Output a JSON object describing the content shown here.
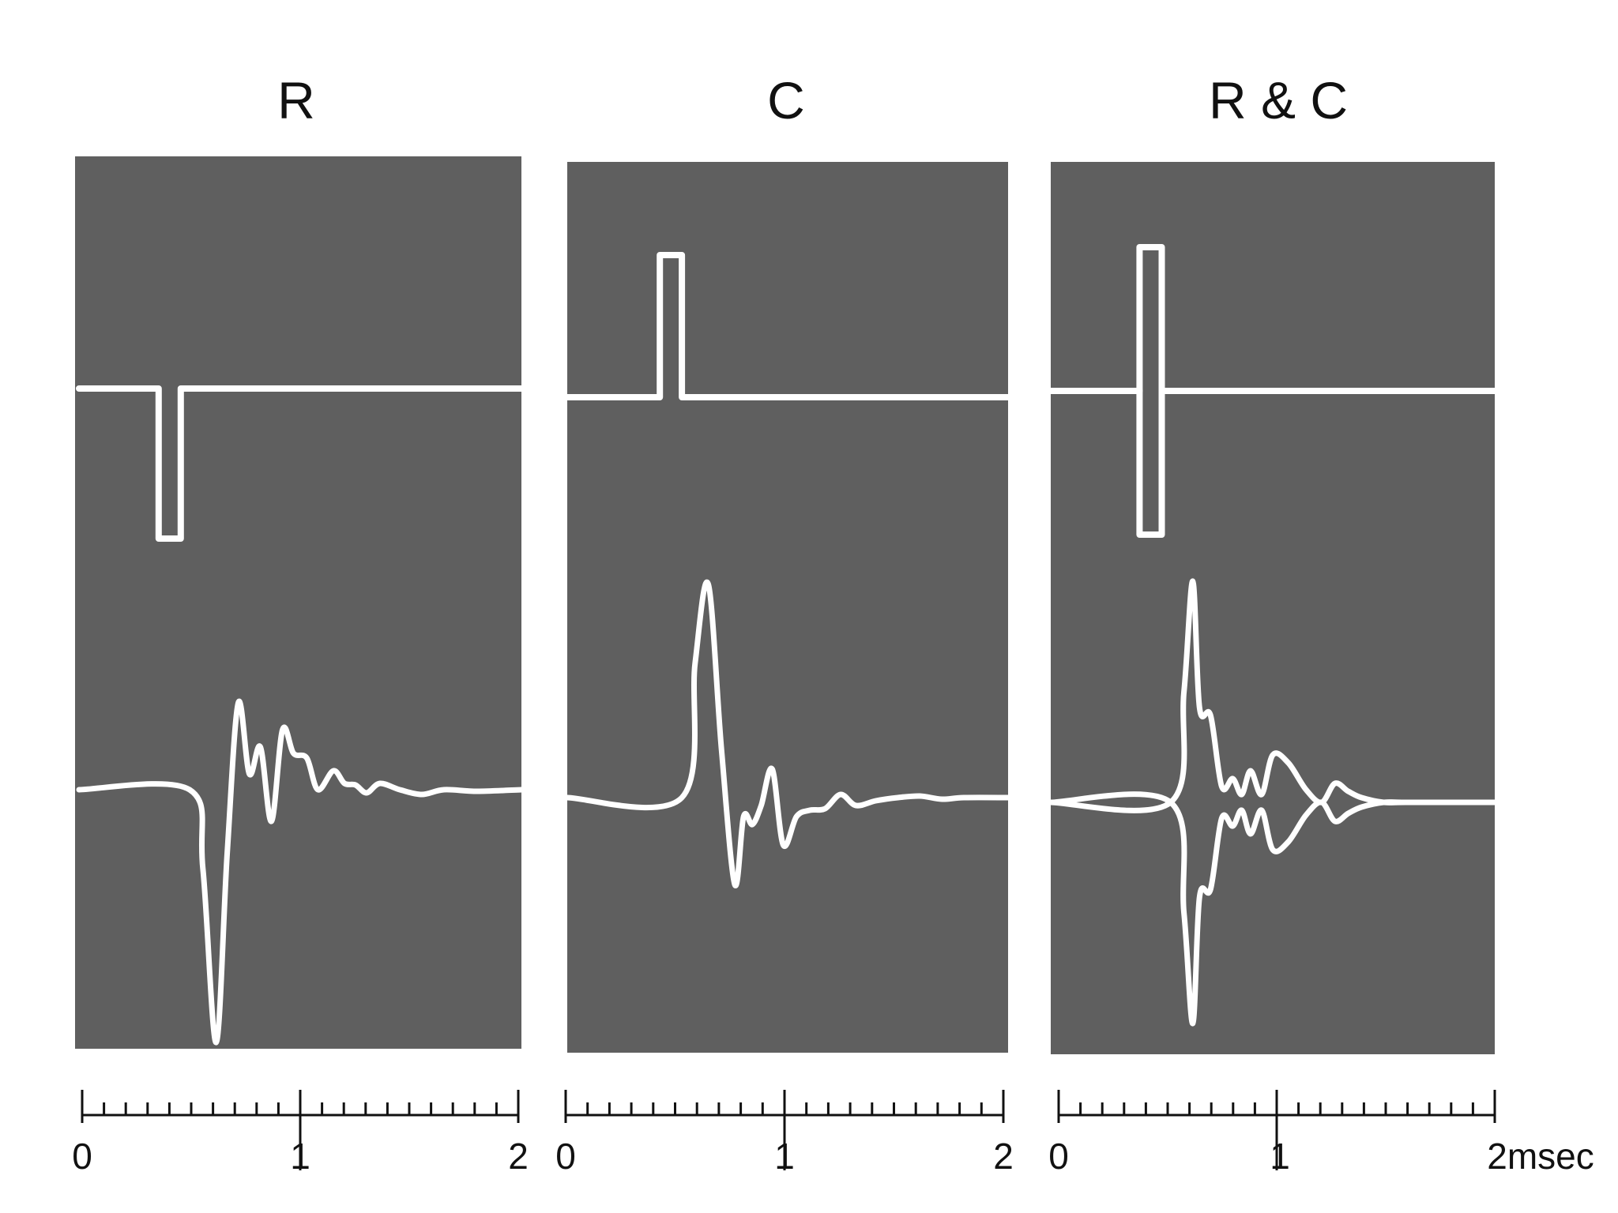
{
  "chart_data": [
    {
      "type": "line",
      "title": "R",
      "x_ticks": [
        "0",
        "1",
        "2"
      ],
      "x_unit": "",
      "xlim": [
        0,
        2
      ],
      "series": [
        {
          "role": "stimulus",
          "x": [
            0,
            0.36,
            0.36,
            0.46,
            0.46,
            2.0
          ],
          "y": [
            0,
            0,
            -1,
            -1,
            0,
            0
          ]
        },
        {
          "role": "response",
          "x": [
            0,
            0.5,
            0.56,
            0.62,
            0.67,
            0.72,
            0.77,
            0.82,
            0.87,
            0.92,
            0.97,
            1.03,
            1.08,
            1.15,
            1.2,
            1.25,
            1.3,
            1.36,
            1.45,
            1.55,
            1.65,
            1.8,
            2.0
          ],
          "y": [
            0,
            0,
            -0.5,
            -1.6,
            -0.4,
            0.55,
            0.1,
            0.27,
            -0.2,
            0.38,
            0.23,
            0.2,
            0.0,
            0.12,
            0.04,
            0.03,
            -0.02,
            0.04,
            0.0,
            -0.03,
            0.0,
            -0.01,
            0.0
          ]
        }
      ]
    },
    {
      "type": "line",
      "title": "C",
      "x_ticks": [
        "0",
        "1",
        "2"
      ],
      "x_unit": "",
      "xlim": [
        0,
        2
      ],
      "series": [
        {
          "role": "stimulus",
          "x": [
            0,
            0.42,
            0.42,
            0.52,
            0.52,
            2.0
          ],
          "y": [
            0,
            0,
            1,
            1,
            0,
            0
          ]
        },
        {
          "role": "response",
          "x": [
            0,
            0.52,
            0.58,
            0.64,
            0.7,
            0.76,
            0.8,
            0.84,
            0.88,
            0.93,
            0.98,
            1.04,
            1.1,
            1.17,
            1.24,
            1.31,
            1.4,
            1.5,
            1.6,
            1.7,
            1.8,
            2.0
          ],
          "y": [
            0,
            0,
            0.85,
            1.35,
            0.3,
            -0.55,
            -0.12,
            -0.17,
            -0.05,
            0.18,
            -0.3,
            -0.12,
            -0.08,
            -0.07,
            0.02,
            -0.05,
            -0.02,
            0.0,
            0.01,
            -0.01,
            0.0,
            0.0
          ]
        }
      ]
    },
    {
      "type": "line",
      "title": "R & C",
      "x_ticks": [
        "0",
        "1",
        "2msec"
      ],
      "x_unit": "msec",
      "xlim": [
        0,
        2
      ],
      "series": [
        {
          "role": "stimulus",
          "x": [
            0,
            0.4,
            0.4,
            0.5,
            0.5,
            2.0
          ],
          "y": [
            0,
            0,
            1,
            1,
            0,
            0
          ]
        },
        {
          "role": "stimulus",
          "x": [
            0,
            0.4,
            0.4,
            0.5,
            0.5,
            2.0
          ],
          "y": [
            0,
            0,
            -1,
            -1,
            0,
            0
          ]
        },
        {
          "role": "response",
          "x": [
            0,
            0.54,
            0.6,
            0.64,
            0.67,
            0.72,
            0.77,
            0.82,
            0.86,
            0.9,
            0.95,
            1.0,
            1.07,
            1.15,
            1.22,
            1.28,
            1.34,
            1.4,
            1.5,
            1.6,
            2.0
          ],
          "y": [
            0,
            0,
            0.7,
            1.4,
            0.6,
            0.55,
            0.1,
            0.15,
            0.05,
            0.2,
            0.05,
            0.3,
            0.25,
            0.08,
            0.0,
            0.12,
            0.07,
            0.03,
            0.0,
            0.0,
            0.0
          ]
        },
        {
          "role": "response",
          "x": [
            0,
            0.54,
            0.6,
            0.64,
            0.67,
            0.72,
            0.77,
            0.82,
            0.86,
            0.9,
            0.95,
            1.0,
            1.07,
            1.15,
            1.22,
            1.28,
            1.34,
            1.4,
            1.5,
            1.6,
            2.0
          ],
          "y": [
            0,
            0,
            -0.7,
            -1.4,
            -0.6,
            -0.55,
            -0.1,
            -0.15,
            -0.05,
            -0.2,
            -0.05,
            -0.3,
            -0.25,
            -0.08,
            0.0,
            -0.12,
            -0.07,
            -0.03,
            0.0,
            0.0,
            0.0
          ]
        }
      ]
    }
  ]
}
